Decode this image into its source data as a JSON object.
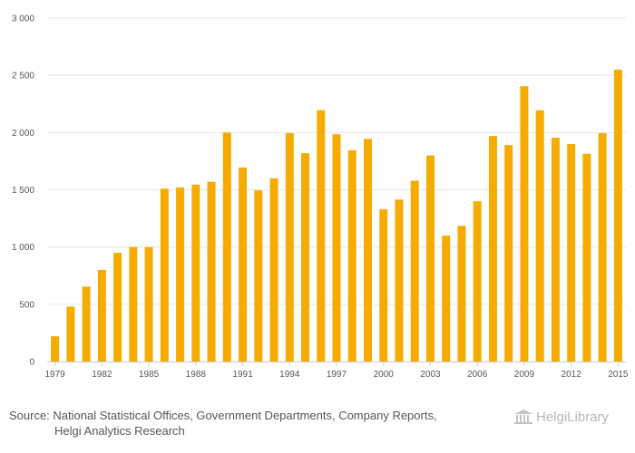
{
  "chart_data": {
    "type": "bar",
    "color": "#f5ab00",
    "grid_color": "#e6e6e6",
    "years": [
      1979,
      1980,
      1981,
      1982,
      1983,
      1984,
      1985,
      1986,
      1987,
      1988,
      1989,
      1990,
      1991,
      1992,
      1993,
      1994,
      1995,
      1996,
      1997,
      1998,
      1999,
      2000,
      2001,
      2002,
      2003,
      2004,
      2005,
      2006,
      2007,
      2008,
      2009,
      2010,
      2011,
      2012,
      2013,
      2014,
      2015
    ],
    "values": [
      220,
      480,
      655,
      800,
      950,
      1000,
      1000,
      1510,
      1520,
      1545,
      1570,
      2000,
      1695,
      1495,
      1600,
      1995,
      1820,
      2195,
      1985,
      1845,
      1945,
      1330,
      1415,
      1580,
      1800,
      1100,
      1185,
      1400,
      1970,
      1890,
      2405,
      2195,
      1955,
      1900,
      1815,
      1995,
      2550
    ],
    "x_tick_labels": [
      "1979",
      "1982",
      "1985",
      "1988",
      "1991",
      "1994",
      "1997",
      "2000",
      "2003",
      "2006",
      "2009",
      "2012",
      "2015"
    ],
    "y_ticks": [
      0,
      500,
      1000,
      1500,
      2000,
      2500,
      3000
    ],
    "y_tick_labels": [
      "0",
      "500",
      "1 000",
      "1 500",
      "2 000",
      "2 500",
      "3 000"
    ],
    "ylim": [
      0,
      3000
    ],
    "title": "",
    "xlabel": "",
    "ylabel": ""
  },
  "source": {
    "line1": "Source: National Statistical Offices, Government Departments, Company Reports,",
    "line2": "Helgi Analytics Research"
  },
  "logo": {
    "text": "HelgiLibrary",
    "icon": "library-columns-icon"
  }
}
